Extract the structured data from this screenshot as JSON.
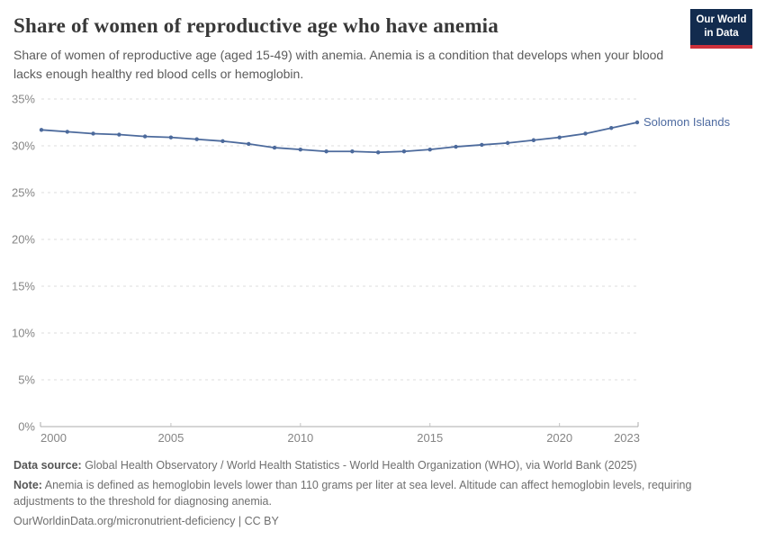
{
  "header": {
    "title": "Share of women of reproductive age who have anemia",
    "subtitle": "Share of women of reproductive age (aged 15-49) with anemia. Anemia is a condition that develops when your blood lacks enough healthy red blood cells or hemoglobin."
  },
  "logo": {
    "line1": "Our World",
    "line2": "in Data",
    "bg_color": "#122b4e",
    "accent_color": "#cd303b"
  },
  "chart_data": {
    "type": "line",
    "title": "Share of women of reproductive age who have anemia",
    "xlabel": "",
    "ylabel": "",
    "xlim": [
      2000,
      2023
    ],
    "ylim": [
      0,
      35
    ],
    "x": [
      2000,
      2001,
      2002,
      2003,
      2004,
      2005,
      2006,
      2007,
      2008,
      2009,
      2010,
      2011,
      2012,
      2013,
      2014,
      2015,
      2016,
      2017,
      2018,
      2019,
      2020,
      2021,
      2022,
      2023
    ],
    "series": [
      {
        "name": "Solomon Islands",
        "color": "#4c6a9c",
        "values": [
          31.7,
          31.5,
          31.3,
          31.2,
          31.0,
          30.9,
          30.7,
          30.5,
          30.2,
          29.8,
          29.6,
          29.4,
          29.4,
          29.3,
          29.4,
          29.6,
          29.9,
          30.1,
          30.3,
          30.6,
          30.9,
          31.3,
          31.9,
          32.5
        ]
      }
    ],
    "x_ticks": [
      2000,
      2005,
      2010,
      2015,
      2020,
      2023
    ],
    "y_ticks": [
      0,
      5,
      10,
      15,
      20,
      25,
      30,
      35
    ],
    "y_tick_suffix": "%",
    "grid": "horizontal-dashed",
    "legend": "entity-label-right",
    "entity_label": "Solomon Islands",
    "gridline_color": "#dcdcdc",
    "axis_color": "#ababab",
    "tick_label_color": "#858585"
  },
  "footer": {
    "data_source_label": "Data source:",
    "data_source_text": " Global Health Observatory / World Health Statistics - World Health Organization (WHO), via World Bank (2025)",
    "note_label": "Note:",
    "note_text": " Anemia is defined as hemoglobin levels lower than 110 grams per liter at sea level. Altitude can affect hemoglobin levels, requiring adjustments to the threshold for diagnosing anemia.",
    "url_text": "OurWorldinData.org/micronutrient-deficiency | CC BY"
  }
}
